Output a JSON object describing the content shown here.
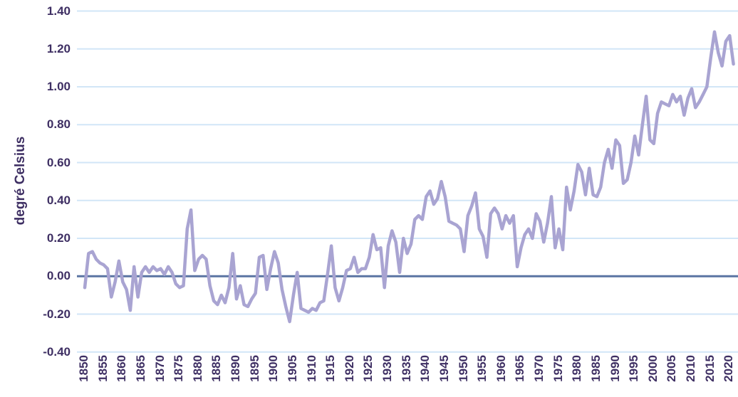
{
  "chart": {
    "y_axis_title": "degré Celsius"
  },
  "chart_data": {
    "type": "line",
    "title": "",
    "xlabel": "",
    "ylabel": "degré Celsius",
    "ylim": [
      -0.4,
      1.4
    ],
    "ytick_step": 0.2,
    "grid": true,
    "legend": false,
    "colors": {
      "series": "#a9a4d2",
      "gridline": "#d2e6f7",
      "zero_line": "#5a74a2",
      "tick_label": "#3e2f63",
      "background": "#ffffff"
    },
    "yticks": [
      {
        "label": "1.40",
        "value": 1.4
      },
      {
        "label": "1.20",
        "value": 1.2
      },
      {
        "label": "1.00",
        "value": 1.0
      },
      {
        "label": "0.80",
        "value": 0.8
      },
      {
        "label": "0.60",
        "value": 0.6
      },
      {
        "label": "0.40",
        "value": 0.4
      },
      {
        "label": "0.20",
        "value": 0.2
      },
      {
        "label": "0.00",
        "value": 0.0
      },
      {
        "label": "-0.20",
        "value": -0.2
      },
      {
        "label": "-0.40",
        "value": -0.4
      }
    ],
    "xticks": [
      "1850",
      "1855",
      "1860",
      "1865",
      "1870",
      "1875",
      "1880",
      "1885",
      "1890",
      "1895",
      "1900",
      "1905",
      "1910",
      "1915",
      "1920",
      "1925",
      "1930",
      "1935",
      "1940",
      "1945",
      "1950",
      "1955",
      "1960",
      "1965",
      "1970",
      "1975",
      "1980",
      "1985",
      "1990",
      "1995",
      "2000",
      "2005",
      "2010",
      "2015",
      "2020"
    ],
    "series": [
      {
        "x": [
          1850,
          1851,
          1852,
          1853,
          1854,
          1855,
          1856,
          1857,
          1858,
          1859,
          1860,
          1861,
          1862,
          1863,
          1864,
          1865,
          1866,
          1867,
          1868,
          1869,
          1870,
          1871,
          1872,
          1873,
          1874,
          1875,
          1876,
          1877,
          1878,
          1879,
          1880,
          1881,
          1882,
          1883,
          1884,
          1885,
          1886,
          1887,
          1888,
          1889,
          1890,
          1891,
          1892,
          1893,
          1894,
          1895,
          1896,
          1897,
          1898,
          1899,
          1900,
          1901,
          1902,
          1903,
          1904,
          1905,
          1906,
          1907,
          1908,
          1909,
          1910,
          1911,
          1912,
          1913,
          1914,
          1915,
          1916,
          1917,
          1918,
          1919,
          1920,
          1921,
          1922,
          1923,
          1924,
          1925,
          1926,
          1927,
          1928,
          1929,
          1930,
          1931,
          1932,
          1933,
          1934,
          1935,
          1936,
          1937,
          1938,
          1939,
          1940,
          1941,
          1942,
          1943,
          1944,
          1945,
          1946,
          1947,
          1948,
          1949,
          1950,
          1951,
          1952,
          1953,
          1954,
          1955,
          1956,
          1957,
          1958,
          1959,
          1960,
          1961,
          1962,
          1963,
          1964,
          1965,
          1966,
          1967,
          1968,
          1969,
          1970,
          1971,
          1972,
          1973,
          1974,
          1975,
          1976,
          1977,
          1978,
          1979,
          1980,
          1981,
          1982,
          1983,
          1984,
          1985,
          1986,
          1987,
          1988,
          1989,
          1990,
          1991,
          1992,
          1993,
          1994,
          1995,
          1996,
          1997,
          1998,
          1999,
          2000,
          2001,
          2002,
          2003,
          2004,
          2005,
          2006,
          2007,
          2008,
          2009,
          2010,
          2011,
          2012,
          2013,
          2014,
          2015,
          2016,
          2017,
          2018,
          2019,
          2020,
          2021
        ],
        "values": [
          -0.06,
          0.12,
          0.13,
          0.09,
          0.07,
          0.06,
          0.04,
          -0.11,
          -0.03,
          0.08,
          -0.03,
          -0.07,
          -0.18,
          0.05,
          -0.11,
          0.02,
          0.05,
          0.02,
          0.05,
          0.03,
          0.04,
          0.01,
          0.05,
          0.02,
          -0.04,
          -0.06,
          -0.05,
          0.25,
          0.35,
          0.03,
          0.09,
          0.11,
          0.09,
          -0.05,
          -0.13,
          -0.15,
          -0.1,
          -0.14,
          -0.06,
          0.12,
          -0.12,
          -0.05,
          -0.15,
          -0.16,
          -0.12,
          -0.09,
          0.1,
          0.11,
          -0.07,
          0.04,
          0.13,
          0.07,
          -0.07,
          -0.16,
          -0.24,
          -0.1,
          0.02,
          -0.17,
          -0.18,
          -0.19,
          -0.17,
          -0.18,
          -0.14,
          -0.13,
          0.01,
          0.16,
          -0.06,
          -0.13,
          -0.06,
          0.03,
          0.04,
          0.1,
          0.02,
          0.04,
          0.04,
          0.1,
          0.22,
          0.14,
          0.15,
          -0.06,
          0.16,
          0.24,
          0.18,
          0.02,
          0.2,
          0.12,
          0.17,
          0.3,
          0.32,
          0.3,
          0.42,
          0.45,
          0.38,
          0.41,
          0.5,
          0.42,
          0.29,
          0.28,
          0.27,
          0.25,
          0.13,
          0.32,
          0.37,
          0.44,
          0.25,
          0.21,
          0.1,
          0.33,
          0.36,
          0.33,
          0.25,
          0.32,
          0.28,
          0.32,
          0.05,
          0.15,
          0.22,
          0.25,
          0.2,
          0.33,
          0.29,
          0.18,
          0.28,
          0.42,
          0.15,
          0.25,
          0.14,
          0.47,
          0.35,
          0.45,
          0.59,
          0.55,
          0.43,
          0.57,
          0.43,
          0.42,
          0.47,
          0.6,
          0.67,
          0.57,
          0.72,
          0.69,
          0.49,
          0.51,
          0.6,
          0.74,
          0.64,
          0.8,
          0.95,
          0.72,
          0.7,
          0.86,
          0.92,
          0.91,
          0.9,
          0.96,
          0.92,
          0.95,
          0.85,
          0.94,
          0.99,
          0.89,
          0.92,
          0.96,
          1.0,
          1.15,
          1.29,
          1.18,
          1.11,
          1.24,
          1.27,
          1.12
        ]
      }
    ]
  }
}
